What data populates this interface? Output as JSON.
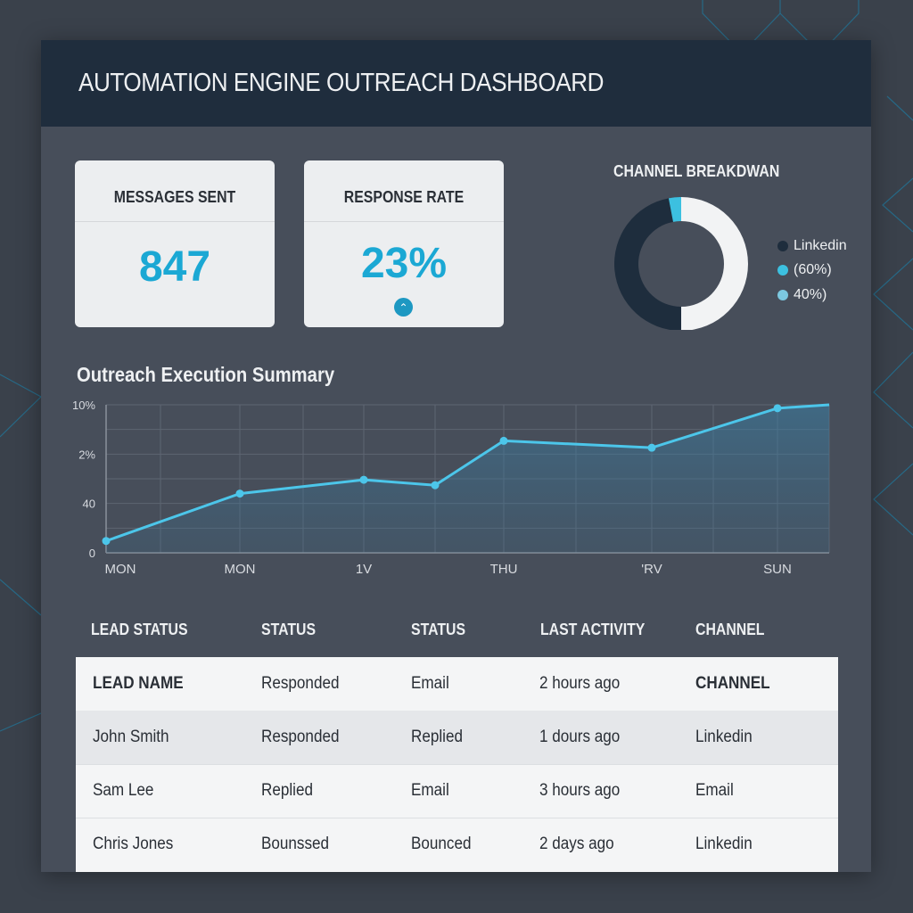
{
  "header": {
    "title": "AUTOMATION ENGINE OUTREACH DASHBOARD"
  },
  "metrics": [
    {
      "label": "MESSAGES SENT",
      "value": "847"
    },
    {
      "label": "RESPONSE RATE",
      "value": "23%",
      "trend_icon": "chevron-up-icon"
    }
  ],
  "channel_breakdown": {
    "title": "CHANNEL BREAKDWAN",
    "slices": [
      {
        "share": 50,
        "color": "#f2f3f4"
      },
      {
        "share": 47,
        "color": "#1e2d3d"
      },
      {
        "share": 3,
        "color": "#3cc0e0"
      }
    ],
    "legend": [
      {
        "label": "Linkedin",
        "color": "#1e2d3d"
      },
      {
        "label": "(60%)",
        "color": "#3cc0e0"
      },
      {
        "label": "40%)",
        "color": "#7cc8e0"
      }
    ]
  },
  "chart_data": {
    "type": "area",
    "title": "Outreach Execution Summary",
    "x_tick_labels": [
      "MON",
      "MON",
      "1V",
      "THU",
      "'RV",
      "SUN"
    ],
    "y_tick_labels": [
      "0",
      "40",
      "2%",
      "10%"
    ],
    "series": [
      {
        "values": [
          0.24,
          1.2,
          1.48,
          1.37,
          2.27,
          2.13,
          2.93,
          3.0
        ],
        "color": "#4cc6ea"
      }
    ],
    "ylim": [
      0,
      3
    ],
    "grid": true
  },
  "table": {
    "headers": [
      "LEAD STATUS",
      "STATUS",
      "STATUS",
      "LAST ACTIVITY",
      "CHANNEL"
    ],
    "rows": [
      [
        "LEAD NAME",
        "Responded",
        "Email",
        "2 hours ago",
        "CHANNEL"
      ],
      [
        "John Smith",
        "Responded",
        "Replied",
        "1 dours ago",
        "Linkedin"
      ],
      [
        "Sam Lee",
        "Replied",
        "Email",
        "3 hours ago",
        "Email"
      ],
      [
        "Chris Jones",
        "Bounssed",
        "Bounced",
        "2 days ago",
        "Linkedin"
      ]
    ]
  }
}
